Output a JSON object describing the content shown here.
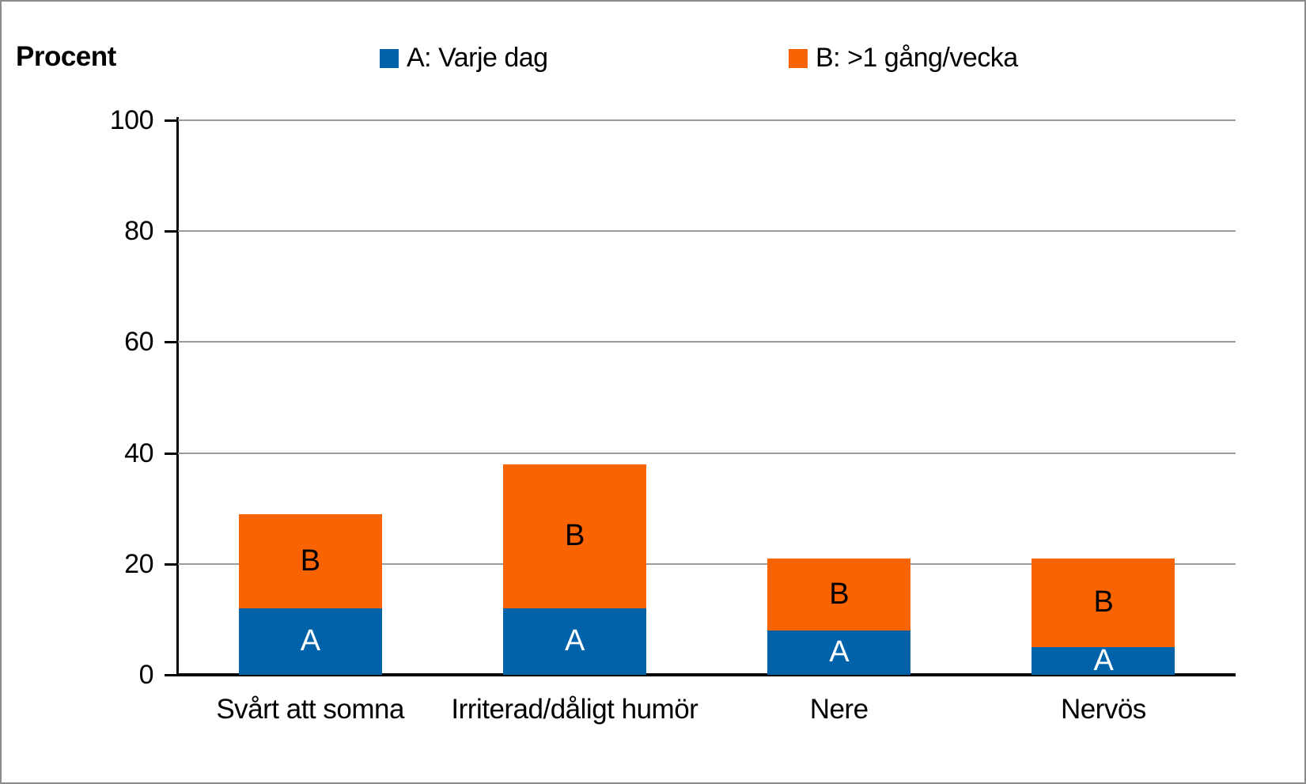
{
  "chart_data": {
    "type": "bar",
    "subtype": "stacked",
    "title": "",
    "ylabel": "Procent",
    "xlabel": "",
    "ylim": [
      0,
      100
    ],
    "yticks": [
      0,
      20,
      40,
      60,
      80,
      100
    ],
    "grid": "horizontal",
    "legend_position": "top",
    "categories": [
      "Svårt att somna",
      "Irriterad/dåligt humör",
      "Nere",
      "Nervös"
    ],
    "series": [
      {
        "name": "A: Varje dag",
        "letter": "A",
        "color": "#0063A9",
        "label_color": "#ffffff",
        "values": [
          12,
          12,
          8,
          5
        ]
      },
      {
        "name": "B: >1 gång/vecka",
        "letter": "B",
        "color": "#F96302",
        "label_color": "#000000",
        "values": [
          17,
          26,
          13,
          16
        ]
      }
    ]
  },
  "colors": {
    "series_a": "#0063A9",
    "series_b": "#F96302",
    "gridline": "#9b9b9b",
    "axis": "#000000"
  }
}
